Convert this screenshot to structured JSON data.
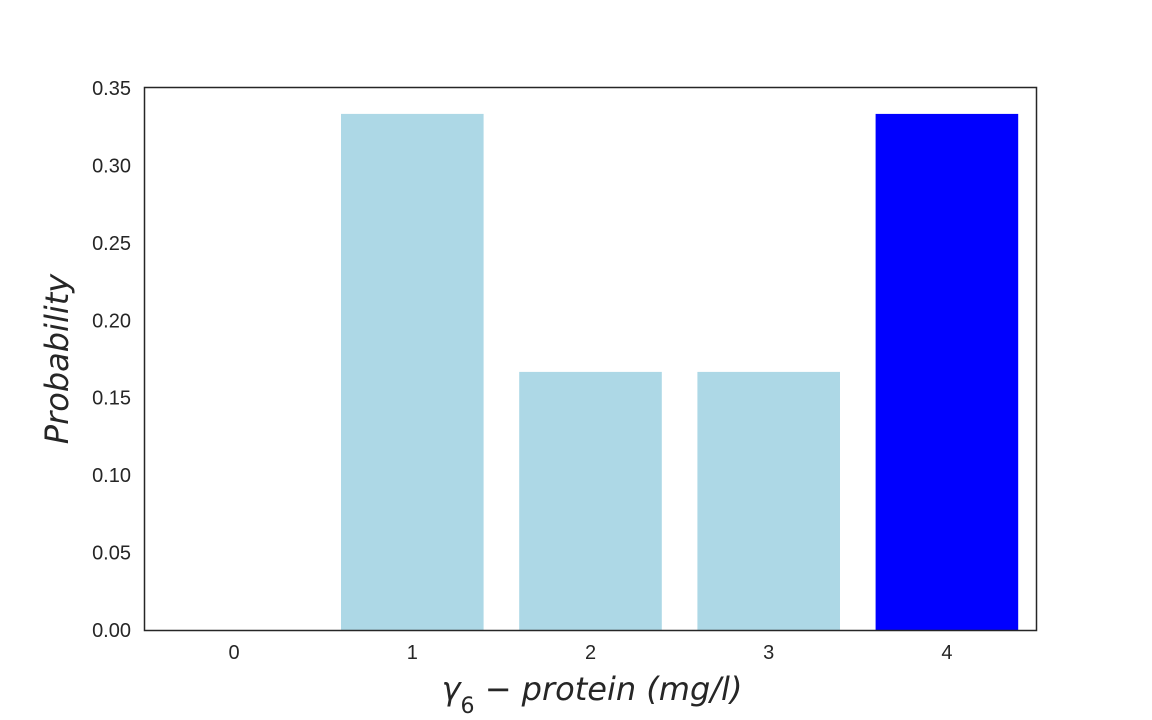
{
  "chart_data": {
    "type": "bar",
    "title": "",
    "categories": [
      "0",
      "1",
      "2",
      "3",
      "4"
    ],
    "values": [
      0.0,
      0.3333,
      0.1667,
      0.1667,
      0.3333
    ],
    "bar_colors": [
      "#add8e6",
      "#add8e6",
      "#add8e6",
      "#add8e6",
      "#0000ff"
    ],
    "highlight_color": "#0000ff",
    "base_color": "#add8e6",
    "xlabel": {
      "prefix": "γ",
      "subscript": "6",
      "rest": " − protein (mg/l)"
    },
    "ylabel": "Probability",
    "ylim": [
      0,
      0.35
    ],
    "yticks": [
      "0.00",
      "0.05",
      "0.10",
      "0.15",
      "0.20",
      "0.25",
      "0.30",
      "0.35"
    ],
    "grid": false,
    "legend": "none"
  }
}
